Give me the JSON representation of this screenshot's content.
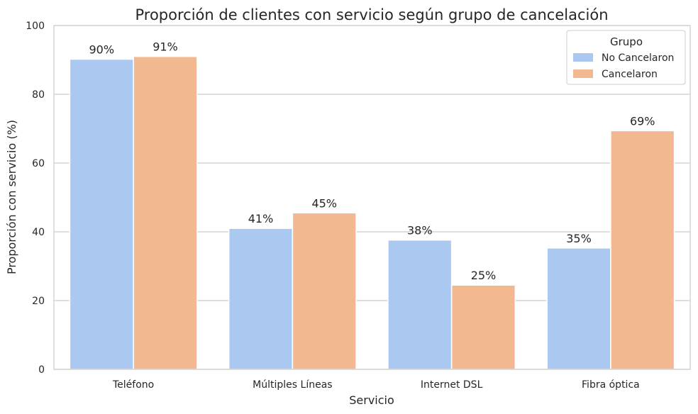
{
  "chart_data": {
    "type": "bar",
    "title": "Proporción de clientes con servicio según grupo de cancelación",
    "xlabel": "Servicio",
    "ylabel": "Proporción con servicio (%)",
    "ylim": [
      0,
      100
    ],
    "yticks": [
      0,
      20,
      40,
      60,
      80,
      100
    ],
    "grid": true,
    "categories": [
      "Teléfono",
      "Múltiples Líneas",
      "Internet DSL",
      "Fibra óptica"
    ],
    "series": [
      {
        "name": "No Cancelaron",
        "values": [
          90.2,
          41.0,
          37.6,
          35.3
        ],
        "labels": [
          "90%",
          "41%",
          "38%",
          "35%"
        ],
        "color": "#abc9f0"
      },
      {
        "name": "Cancelaron",
        "values": [
          91.0,
          45.5,
          24.5,
          69.4
        ],
        "labels": [
          "91%",
          "45%",
          "25%",
          "69%"
        ],
        "color": "#f2b890"
      }
    ],
    "legend": {
      "title": "Grupo",
      "position": "top-right"
    }
  }
}
